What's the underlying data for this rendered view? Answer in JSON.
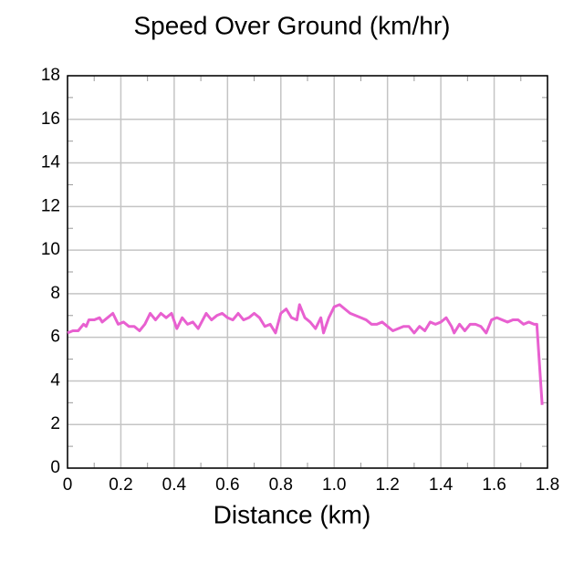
{
  "chart_data": {
    "type": "line",
    "title": "Speed Over Ground (km/hr)",
    "x_label": "Distance (km)",
    "xlim": [
      0,
      1.8
    ],
    "ylim": [
      0,
      18
    ],
    "xticks": [
      0,
      0.2,
      0.4,
      0.6,
      0.8,
      {
        "value": 1,
        "label": "1.0"
      },
      1.2,
      1.4,
      1.6,
      1.8
    ],
    "yticks": [
      0,
      2,
      4,
      6,
      8,
      10,
      12,
      14,
      16,
      18
    ],
    "xminorticks": [
      0.1,
      0.3,
      0.5,
      0.7,
      0.9,
      1.1,
      1.3,
      1.5,
      1.7
    ],
    "yminorticks": [
      1,
      3,
      5,
      7,
      9,
      11,
      13,
      15,
      17
    ],
    "grid": true,
    "x": [
      0.0,
      0.02,
      0.04,
      0.06,
      0.07,
      0.08,
      0.1,
      0.12,
      0.13,
      0.15,
      0.17,
      0.19,
      0.21,
      0.23,
      0.25,
      0.27,
      0.29,
      0.31,
      0.33,
      0.35,
      0.37,
      0.39,
      0.41,
      0.43,
      0.45,
      0.47,
      0.49,
      0.52,
      0.54,
      0.56,
      0.58,
      0.6,
      0.62,
      0.64,
      0.66,
      0.68,
      0.7,
      0.72,
      0.74,
      0.76,
      0.78,
      0.8,
      0.82,
      0.84,
      0.86,
      0.87,
      0.89,
      0.91,
      0.93,
      0.95,
      0.96,
      0.98,
      1.0,
      1.02,
      1.04,
      1.06,
      1.08,
      1.1,
      1.12,
      1.14,
      1.16,
      1.18,
      1.2,
      1.22,
      1.24,
      1.26,
      1.28,
      1.3,
      1.32,
      1.34,
      1.36,
      1.38,
      1.4,
      1.42,
      1.44,
      1.45,
      1.47,
      1.49,
      1.51,
      1.53,
      1.55,
      1.57,
      1.59,
      1.61,
      1.63,
      1.65,
      1.67,
      1.69,
      1.71,
      1.73,
      1.75,
      1.76,
      1.78
    ],
    "series": [
      {
        "name": "Speed",
        "color": "#e860d0",
        "values": [
          6.2,
          6.3,
          6.3,
          6.6,
          6.5,
          6.8,
          6.8,
          6.9,
          6.7,
          6.9,
          7.1,
          6.6,
          6.7,
          6.5,
          6.5,
          6.3,
          6.6,
          7.1,
          6.8,
          7.1,
          6.9,
          7.1,
          6.4,
          6.9,
          6.6,
          6.7,
          6.4,
          7.1,
          6.8,
          7.0,
          7.1,
          6.9,
          6.8,
          7.1,
          6.8,
          6.9,
          7.1,
          6.9,
          6.5,
          6.6,
          6.2,
          7.1,
          7.3,
          6.9,
          6.8,
          7.5,
          6.9,
          6.7,
          6.4,
          6.9,
          6.2,
          6.9,
          7.4,
          7.5,
          7.3,
          7.1,
          7.0,
          6.9,
          6.8,
          6.6,
          6.6,
          6.7,
          6.5,
          6.3,
          6.4,
          6.5,
          6.5,
          6.2,
          6.5,
          6.3,
          6.7,
          6.6,
          6.7,
          6.9,
          6.5,
          6.2,
          6.6,
          6.3,
          6.6,
          6.6,
          6.5,
          6.2,
          6.8,
          6.9,
          6.8,
          6.7,
          6.8,
          6.8,
          6.6,
          6.7,
          6.6,
          6.6,
          2.9
        ]
      }
    ]
  }
}
